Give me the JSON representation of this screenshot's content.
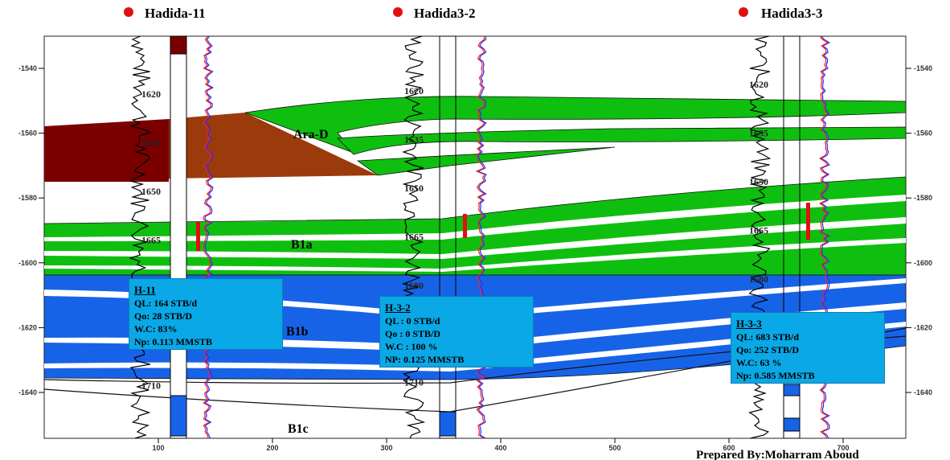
{
  "wells": [
    {
      "name": "Hadida-11",
      "depth_labels": [
        1620,
        1635,
        1650,
        1665,
        1710
      ]
    },
    {
      "name": "Hadida3-2",
      "depth_labels": [
        1620,
        1635,
        1650,
        1665,
        1680,
        1710
      ]
    },
    {
      "name": "Hadida3-3",
      "depth_labels": [
        1620,
        1635,
        1650,
        1665,
        1680
      ]
    }
  ],
  "axes": {
    "x_ticks": [
      100,
      200,
      300,
      400,
      500,
      600,
      700
    ],
    "y_ticks": [
      -1540,
      -1560,
      -1580,
      -1600,
      -1620,
      -1640
    ]
  },
  "zones": [
    "Ara-D",
    "B1a",
    "B1b",
    "B1c"
  ],
  "info_boxes": [
    {
      "title": "H-11",
      "lines": [
        "QL: 164 STB/d",
        "Qo: 28 STB/D",
        "W.C: 83%",
        "Np: 0.113 MMSTB"
      ]
    },
    {
      "title": "H-3-2",
      "lines": [
        "QL : 0 STB/d",
        "Qo : 0 STB/D",
        "W.C : 100 %",
        "NP: 0.125 MMSTB"
      ]
    },
    {
      "title": "H-3-3",
      "lines": [
        "QL: 683 STB/d",
        "Qo: 252 STB/D",
        "W.C: 63 %",
        "Np: 0.585 MMSTB"
      ]
    }
  ],
  "credit": "Prepared By:Moharram Aboud"
}
